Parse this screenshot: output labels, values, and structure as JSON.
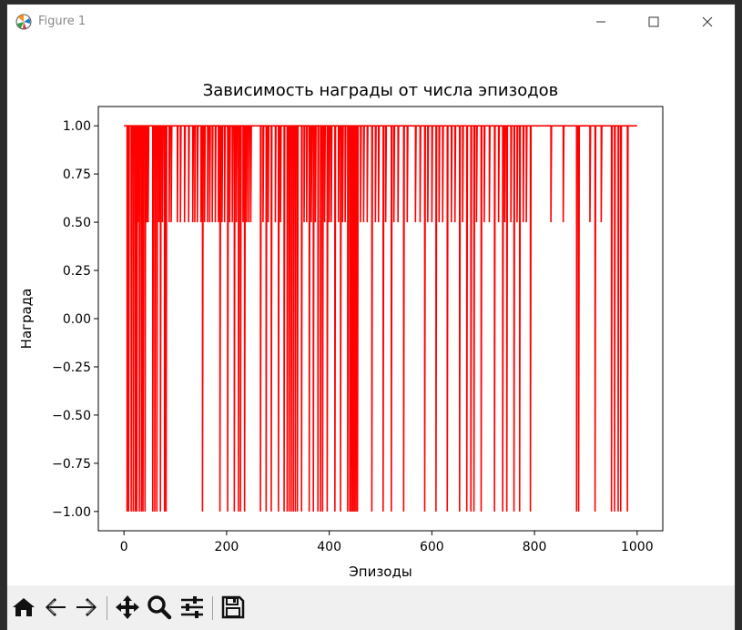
{
  "window": {
    "title": "Figure 1"
  },
  "toolbar": {
    "buttons": [
      "home-icon",
      "back-icon",
      "forward-icon",
      "pan-icon",
      "zoom-icon",
      "configure-subplots-icon",
      "save-icon"
    ]
  },
  "colors": {
    "line": "#ff0000",
    "toolbar_bg": "#f0f0f0"
  },
  "chart_data": {
    "type": "line",
    "title": "Зависимость награды от числа эпизодов",
    "xlabel": "Эпизоды",
    "ylabel": "Награда",
    "xlim": [
      -50,
      1050
    ],
    "ylim": [
      -1.1,
      1.1
    ],
    "xticks": [
      0,
      200,
      400,
      600,
      800,
      1000
    ],
    "xtick_labels": [
      "0",
      "200",
      "400",
      "600",
      "800",
      "1000"
    ],
    "yticks": [
      1.0,
      0.75,
      0.5,
      0.25,
      0.0,
      -0.25,
      -0.5,
      -0.75,
      -1.0
    ],
    "ytick_labels": [
      "1.00",
      "0.75",
      "0.50",
      "0.25",
      "0.00",
      "−0.25",
      "−0.50",
      "−0.75",
      "−1.00"
    ],
    "grid": false,
    "series": [
      {
        "color": "#ff0000",
        "x_start": 0,
        "x_end": 1000,
        "baseline": 1.0,
        "dips": [
          [
            6,
            -1
          ],
          [
            9,
            -1
          ],
          [
            14,
            -1
          ],
          [
            18,
            -1
          ],
          [
            22,
            -1
          ],
          [
            25,
            -1
          ],
          [
            27,
            0.5
          ],
          [
            30,
            -1
          ],
          [
            34,
            -1
          ],
          [
            37,
            -1
          ],
          [
            41,
            -1
          ],
          [
            44,
            0.5
          ],
          [
            47,
            0.5
          ],
          [
            56,
            -1
          ],
          [
            60,
            -1
          ],
          [
            64,
            -1
          ],
          [
            68,
            0.5
          ],
          [
            71,
            -1
          ],
          [
            75,
            0.5
          ],
          [
            79,
            -1
          ],
          [
            82,
            -1
          ],
          [
            88,
            0.5
          ],
          [
            92,
            0.5
          ],
          [
            104,
            0.5
          ],
          [
            110,
            0.5
          ],
          [
            118,
            0.5
          ],
          [
            126,
            0.5
          ],
          [
            134,
            0.5
          ],
          [
            138,
            0.5
          ],
          [
            143,
            0.5
          ],
          [
            150,
            0.5
          ],
          [
            153,
            -1
          ],
          [
            157,
            0.5
          ],
          [
            163,
            0.5
          ],
          [
            167,
            0.5
          ],
          [
            172,
            0.5
          ],
          [
            178,
            0.5
          ],
          [
            184,
            0.5
          ],
          [
            187,
            -1
          ],
          [
            191,
            0.5
          ],
          [
            196,
            0.5
          ],
          [
            202,
            -1
          ],
          [
            206,
            0.5
          ],
          [
            211,
            0.5
          ],
          [
            215,
            -1
          ],
          [
            219,
            0.5
          ],
          [
            223,
            -1
          ],
          [
            227,
            -1
          ],
          [
            232,
            0.5
          ],
          [
            235,
            -1
          ],
          [
            239,
            0.5
          ],
          [
            243,
            0.5
          ],
          [
            247,
            0.5
          ],
          [
            266,
            -1
          ],
          [
            271,
            0.5
          ],
          [
            277,
            -1
          ],
          [
            281,
            0.5
          ],
          [
            287,
            -1
          ],
          [
            295,
            0.5
          ],
          [
            301,
            -1
          ],
          [
            305,
            0.5
          ],
          [
            312,
            -1
          ],
          [
            318,
            -1
          ],
          [
            322,
            -1
          ],
          [
            326,
            -1
          ],
          [
            330,
            -1
          ],
          [
            334,
            -1
          ],
          [
            338,
            -1
          ],
          [
            346,
            -1
          ],
          [
            351,
            0.5
          ],
          [
            356,
            0.5
          ],
          [
            361,
            -1
          ],
          [
            365,
            0.5
          ],
          [
            369,
            -1
          ],
          [
            373,
            0.5
          ],
          [
            378,
            -1
          ],
          [
            383,
            -1
          ],
          [
            387,
            -1
          ],
          [
            391,
            0.5
          ],
          [
            396,
            -1
          ],
          [
            400,
            0.5
          ],
          [
            404,
            0.5
          ],
          [
            411,
            -1
          ],
          [
            418,
            0.5
          ],
          [
            422,
            -1
          ],
          [
            426,
            0.5
          ],
          [
            431,
            0.5
          ],
          [
            436,
            -1
          ],
          [
            440,
            -1
          ],
          [
            443,
            -1
          ],
          [
            446,
            -1
          ],
          [
            449,
            -1
          ],
          [
            452,
            -1
          ],
          [
            455,
            -1
          ],
          [
            461,
            0.5
          ],
          [
            467,
            0.5
          ],
          [
            474,
            0.5
          ],
          [
            483,
            -1
          ],
          [
            490,
            0.5
          ],
          [
            496,
            0.5
          ],
          [
            505,
            -1
          ],
          [
            510,
            0.5
          ],
          [
            521,
            -1
          ],
          [
            526,
            0.5
          ],
          [
            534,
            0.5
          ],
          [
            545,
            -1
          ],
          [
            552,
            0.5
          ],
          [
            568,
            0.5
          ],
          [
            577,
            0.5
          ],
          [
            586,
            -1
          ],
          [
            592,
            0.5
          ],
          [
            600,
            0.5
          ],
          [
            608,
            -1
          ],
          [
            614,
            0.5
          ],
          [
            621,
            0.5
          ],
          [
            630,
            -1
          ],
          [
            638,
            0.5
          ],
          [
            645,
            0.5
          ],
          [
            654,
            -1
          ],
          [
            660,
            0.5
          ],
          [
            668,
            -1
          ],
          [
            676,
            -1
          ],
          [
            682,
            -1
          ],
          [
            687,
            0.5
          ],
          [
            696,
            -1
          ],
          [
            702,
            0.5
          ],
          [
            712,
            0.5
          ],
          [
            722,
            -1
          ],
          [
            730,
            0.5
          ],
          [
            738,
            -1
          ],
          [
            742,
            0.5
          ],
          [
            746,
            -1
          ],
          [
            754,
            0.5
          ],
          [
            760,
            -1
          ],
          [
            766,
            0.5
          ],
          [
            771,
            -1
          ],
          [
            778,
            0.5
          ],
          [
            784,
            0.5
          ],
          [
            792,
            -1
          ],
          [
            832,
            0.5
          ],
          [
            856,
            0.5
          ],
          [
            882,
            -1
          ],
          [
            886,
            -1
          ],
          [
            908,
            0.5
          ],
          [
            918,
            -1
          ],
          [
            930,
            0.5
          ],
          [
            950,
            -1
          ],
          [
            956,
            -1
          ],
          [
            963,
            -1
          ],
          [
            968,
            -1
          ],
          [
            981,
            -1
          ]
        ]
      }
    ]
  }
}
